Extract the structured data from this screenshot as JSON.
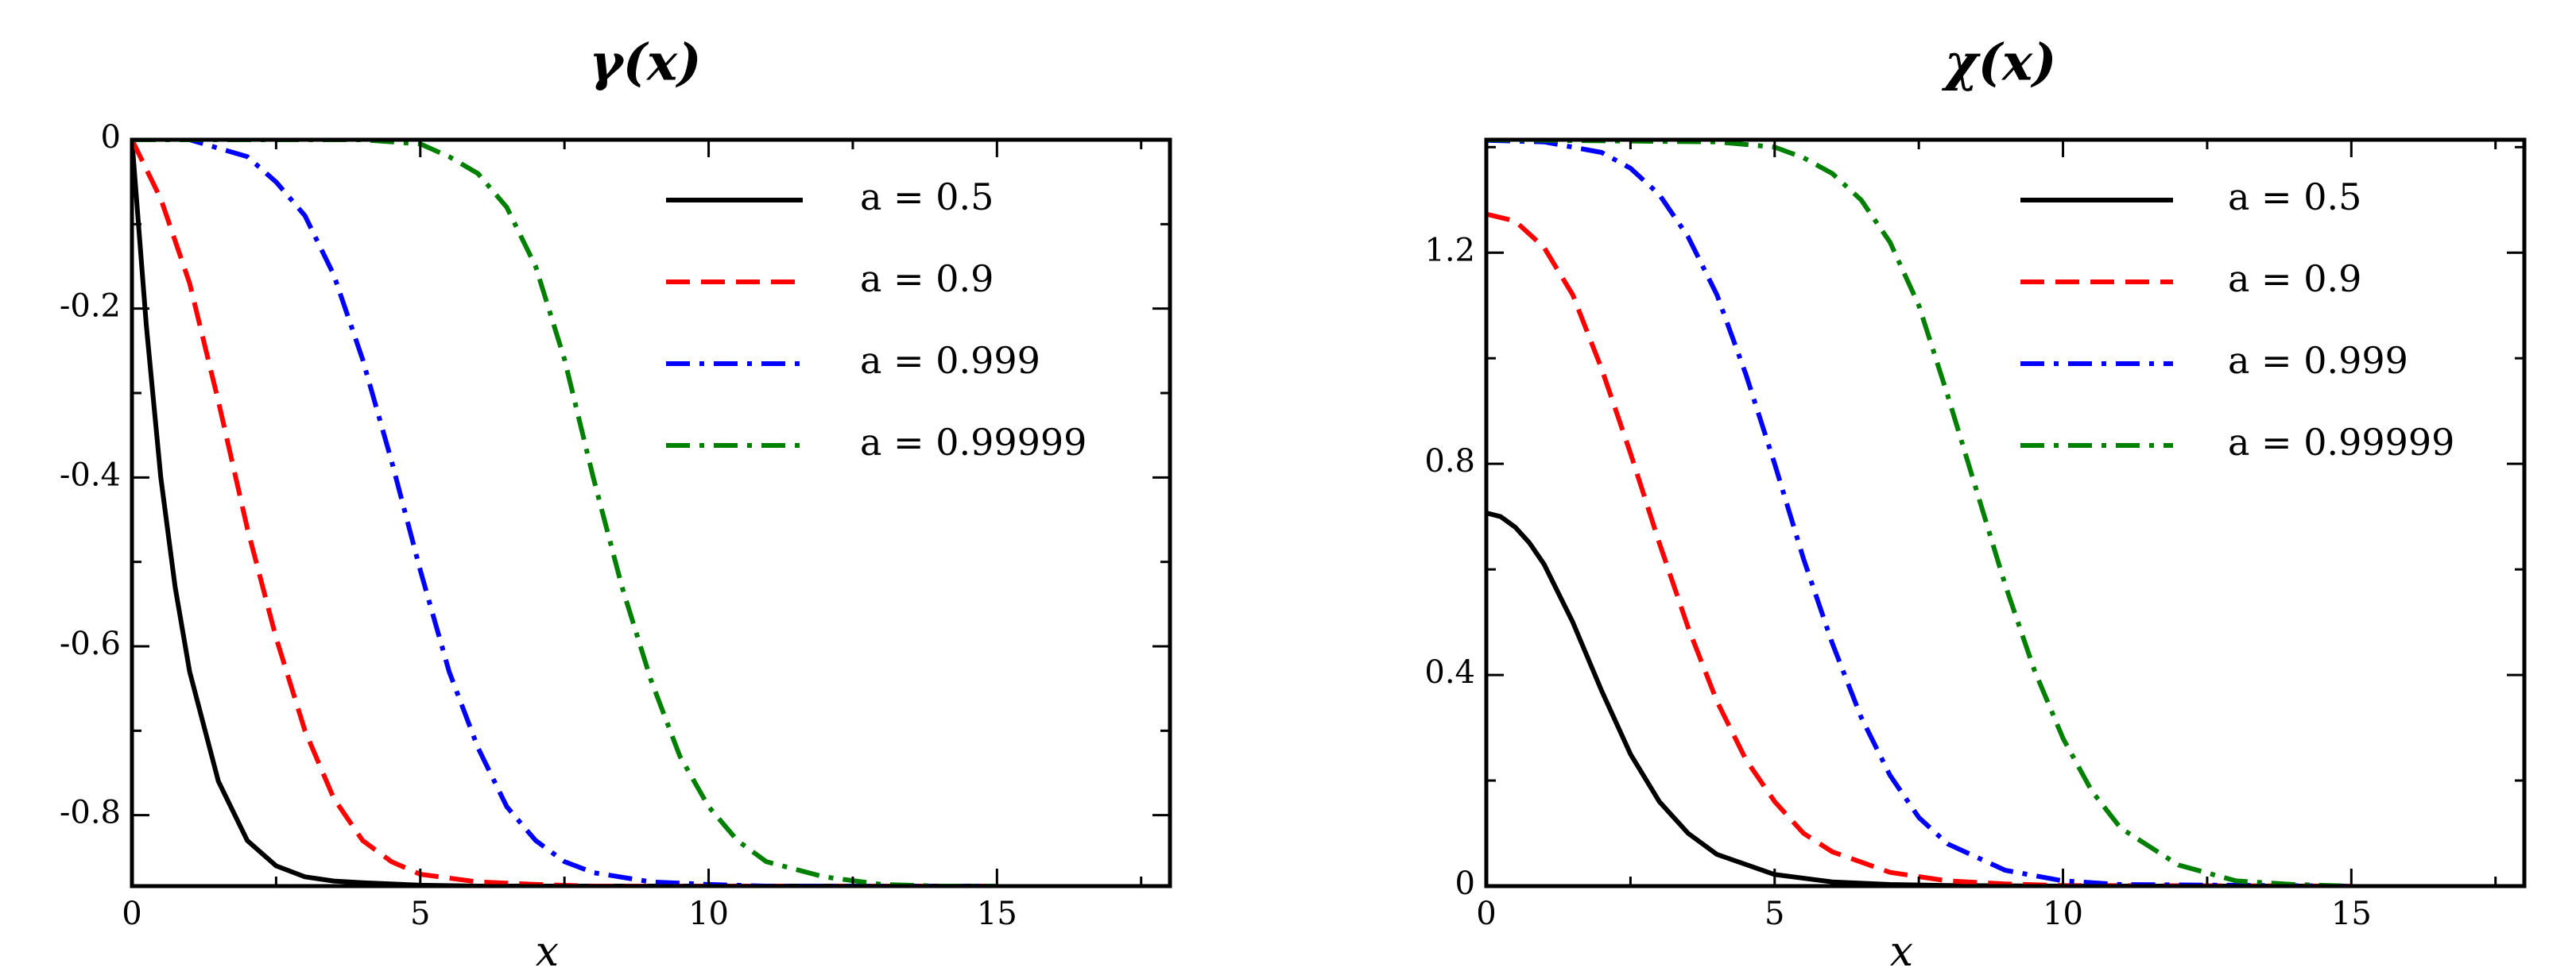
{
  "chart_data": [
    {
      "type": "line",
      "title": "γ(x)",
      "xlabel": "x",
      "ylabel": "",
      "xlim": [
        0,
        18
      ],
      "ylim": [
        -0.884,
        0
      ],
      "xticks": [
        0,
        5,
        10,
        15
      ],
      "xtick_labels": [
        "0",
        "5",
        "10",
        "15"
      ],
      "yticks": [
        0,
        -0.2,
        -0.4,
        -0.6,
        -0.8
      ],
      "ytick_labels": [
        "0",
        "-0.2",
        "-0.4",
        "-0.6",
        "-0.8"
      ],
      "grid": false,
      "legend_position": "top-right",
      "series": [
        {
          "name": "a = 0.5",
          "color": "#000000",
          "dash": "solid",
          "x": [
            0,
            0.25,
            0.5,
            0.75,
            1,
            1.5,
            2,
            2.5,
            3,
            3.5,
            4,
            5,
            6,
            8,
            10,
            15
          ],
          "y": [
            0,
            -0.22,
            -0.4,
            -0.53,
            -0.63,
            -0.76,
            -0.83,
            -0.86,
            -0.873,
            -0.878,
            -0.88,
            -0.883,
            -0.884,
            -0.884,
            -0.884,
            -0.884
          ]
        },
        {
          "name": "a = 0.9",
          "color": "#ff0000",
          "dash": "dashed",
          "x": [
            0,
            0.5,
            1,
            1.5,
            2,
            2.5,
            3,
            3.5,
            4,
            4.5,
            5,
            6,
            7,
            8,
            10,
            15
          ],
          "y": [
            0,
            -0.07,
            -0.17,
            -0.31,
            -0.46,
            -0.59,
            -0.7,
            -0.78,
            -0.83,
            -0.855,
            -0.87,
            -0.879,
            -0.882,
            -0.884,
            -0.884,
            -0.884
          ]
        },
        {
          "name": "a = 0.999",
          "color": "#0000ff",
          "dash": "dashdot",
          "x": [
            0,
            1,
            2,
            2.5,
            3,
            3.5,
            4,
            4.5,
            5,
            5.5,
            6,
            6.5,
            7,
            7.5,
            8,
            9,
            10,
            11,
            15
          ],
          "y": [
            0,
            0,
            -0.02,
            -0.05,
            -0.09,
            -0.16,
            -0.26,
            -0.38,
            -0.51,
            -0.63,
            -0.72,
            -0.79,
            -0.83,
            -0.855,
            -0.868,
            -0.879,
            -0.882,
            -0.884,
            -0.884
          ]
        },
        {
          "name": "a = 0.99999",
          "color": "#008000",
          "dash": "dashdot",
          "x": [
            0,
            4,
            5,
            5.5,
            6,
            6.5,
            7,
            7.5,
            8,
            8.5,
            9,
            9.5,
            10,
            10.5,
            11,
            12,
            13,
            14,
            15
          ],
          "y": [
            0,
            0,
            -0.005,
            -0.02,
            -0.04,
            -0.08,
            -0.15,
            -0.26,
            -0.4,
            -0.53,
            -0.64,
            -0.73,
            -0.79,
            -0.83,
            -0.855,
            -0.873,
            -0.882,
            -0.884,
            -0.884
          ]
        }
      ]
    },
    {
      "type": "line",
      "title": "χ(x)",
      "xlabel": "x",
      "ylabel": "",
      "xlim": [
        0,
        18
      ],
      "ylim": [
        0,
        1.414
      ],
      "xticks": [
        0,
        5,
        10,
        15
      ],
      "xtick_labels": [
        "0",
        "5",
        "10",
        "15"
      ],
      "yticks": [
        0,
        0.4,
        0.8,
        1.2
      ],
      "ytick_labels": [
        "0",
        "0.4",
        "0.8",
        "1.2"
      ],
      "grid": false,
      "legend_position": "top-right",
      "series": [
        {
          "name": "a = 0.5",
          "color": "#000000",
          "dash": "solid",
          "x": [
            0,
            0.25,
            0.5,
            0.75,
            1,
            1.5,
            2,
            2.5,
            3,
            3.5,
            4,
            5,
            6,
            7,
            8,
            10,
            15
          ],
          "y": [
            0.707,
            0.7,
            0.68,
            0.65,
            0.61,
            0.5,
            0.37,
            0.25,
            0.16,
            0.1,
            0.06,
            0.022,
            0.008,
            0.003,
            0.001,
            0,
            0
          ]
        },
        {
          "name": "a = 0.9",
          "color": "#ff0000",
          "dash": "dashed",
          "x": [
            0,
            0.5,
            1,
            1.5,
            2,
            2.5,
            3,
            3.5,
            4,
            4.5,
            5,
            5.5,
            6,
            7,
            8,
            9,
            10,
            15
          ],
          "y": [
            1.273,
            1.26,
            1.21,
            1.12,
            0.98,
            0.82,
            0.65,
            0.49,
            0.35,
            0.24,
            0.16,
            0.1,
            0.065,
            0.026,
            0.01,
            0.004,
            0.001,
            0
          ]
        },
        {
          "name": "a = 0.999",
          "color": "#0000ff",
          "dash": "dashdot",
          "x": [
            0,
            1,
            2,
            2.5,
            3,
            3.5,
            4,
            4.5,
            5,
            5.5,
            6,
            6.5,
            7,
            7.5,
            8,
            9,
            10,
            11,
            15
          ],
          "y": [
            1.413,
            1.41,
            1.39,
            1.36,
            1.31,
            1.23,
            1.12,
            0.97,
            0.8,
            0.62,
            0.46,
            0.32,
            0.21,
            0.13,
            0.08,
            0.03,
            0.01,
            0.003,
            0
          ]
        },
        {
          "name": "a = 0.99999",
          "color": "#008000",
          "dash": "dashdot",
          "x": [
            0,
            4,
            5,
            5.5,
            6,
            6.5,
            7,
            7.5,
            8,
            8.5,
            9,
            9.5,
            10,
            10.5,
            11,
            12,
            13,
            14,
            15
          ],
          "y": [
            1.414,
            1.41,
            1.4,
            1.38,
            1.35,
            1.3,
            1.22,
            1.1,
            0.93,
            0.75,
            0.57,
            0.41,
            0.28,
            0.18,
            0.11,
            0.04,
            0.01,
            0.003,
            0
          ]
        }
      ]
    }
  ]
}
